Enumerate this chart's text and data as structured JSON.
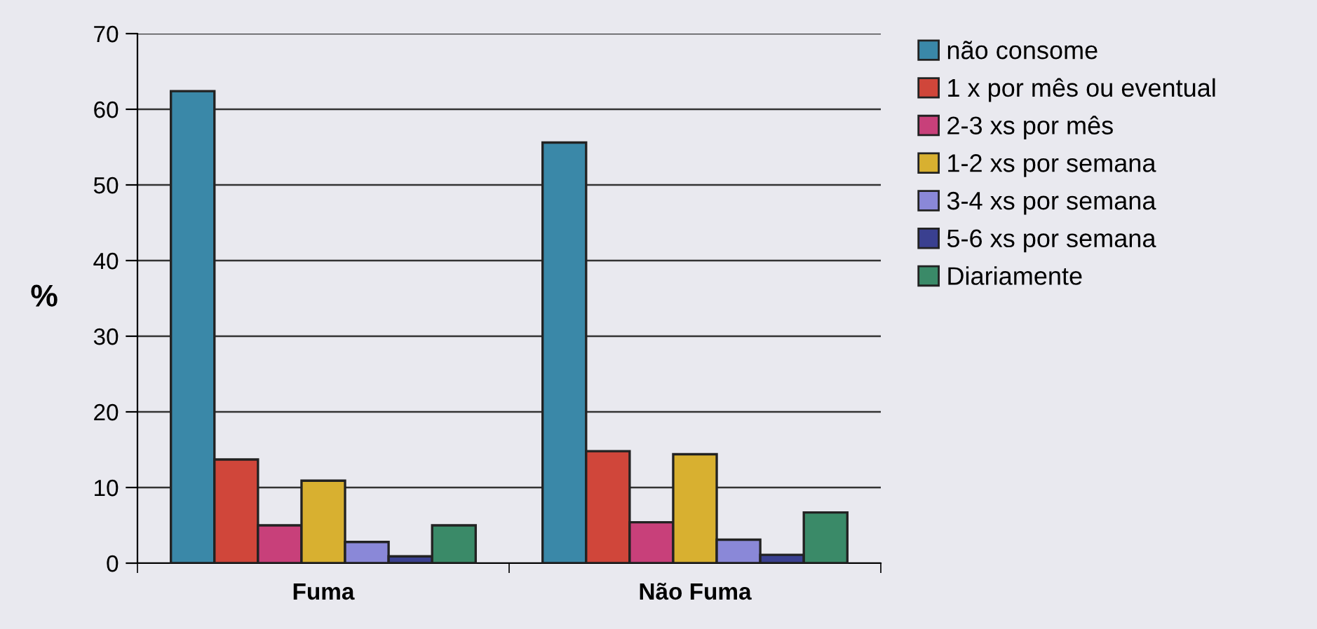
{
  "chart_data": {
    "type": "bar",
    "ylabel": "%",
    "categories": [
      "Fuma",
      "Não Fuma"
    ],
    "series": [
      {
        "name": "não consome",
        "color": "#3a88a8",
        "values": [
          62.4,
          55.6
        ]
      },
      {
        "name": "1 x por mês ou eventual",
        "color": "#d0463a",
        "values": [
          13.7,
          14.8
        ]
      },
      {
        "name": "2-3 xs por mês",
        "color": "#c8407a",
        "values": [
          5.0,
          5.4
        ]
      },
      {
        "name": "1-2 xs por semana",
        "color": "#d8b030",
        "values": [
          10.9,
          14.4
        ]
      },
      {
        "name": "3-4 xs por semana",
        "color": "#8a88d8",
        "values": [
          2.8,
          3.1
        ]
      },
      {
        "name": "5-6 xs por semana",
        "color": "#3a4090",
        "values": [
          0.9,
          1.1
        ]
      },
      {
        "name": "Diariamente",
        "color": "#3a8a68",
        "values": [
          5.0,
          6.7
        ]
      }
    ],
    "ylim": [
      0,
      70
    ],
    "yticks": [
      0,
      10,
      20,
      30,
      40,
      50,
      60,
      70
    ],
    "grid": "y",
    "legend": "right"
  }
}
